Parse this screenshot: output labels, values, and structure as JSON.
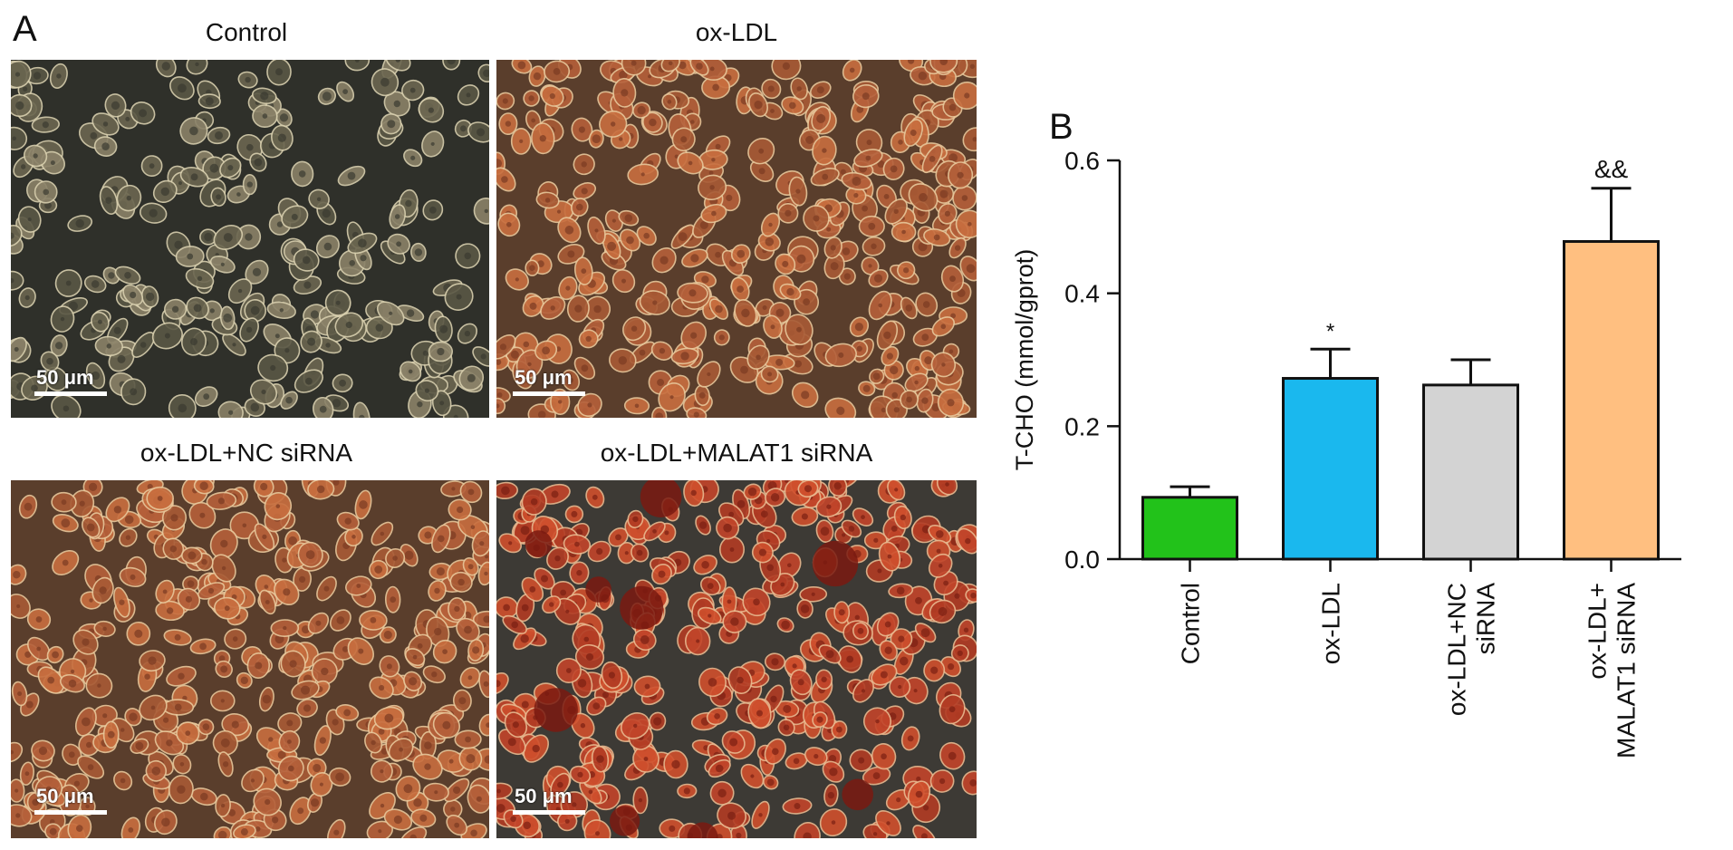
{
  "panel_a": {
    "letter": "A",
    "images": [
      {
        "title": "Control",
        "scale": "50 μm",
        "stain": "none"
      },
      {
        "title": "ox-LDL",
        "scale": "50 μm",
        "stain": "moderate"
      },
      {
        "title": "ox-LDL+NC siRNA",
        "scale": "50 μm",
        "stain": "moderate"
      },
      {
        "title": "ox-LDL+MALAT1 siRNA",
        "scale": "50 μm",
        "stain": "strong"
      }
    ]
  },
  "panel_b": {
    "letter": "B"
  },
  "chart_data": {
    "type": "bar",
    "categories": [
      "Control",
      "ox-LDL",
      "ox-LDL+NC siRNA",
      "ox-LDL+ MALAT1 siRNA"
    ],
    "category_lines": [
      [
        "Control"
      ],
      [
        "ox-LDL"
      ],
      [
        "ox-LDL+NC",
        "siRNA"
      ],
      [
        "ox-LDL+",
        "MALAT1 siRNA"
      ]
    ],
    "values": [
      0.093,
      0.272,
      0.262,
      0.478
    ],
    "errors": [
      0.016,
      0.044,
      0.038,
      0.08
    ],
    "annotations": [
      "",
      "*",
      "",
      "&&"
    ],
    "colors": [
      "#22c21a",
      "#1ab8ee",
      "#d3d3d3",
      "#ffbf80"
    ],
    "ylabel": "T-CHO (mmol/gprot)",
    "ylim": [
      0,
      0.6
    ],
    "yticks": [
      "0.0",
      "0.2",
      "0.4",
      "0.6"
    ],
    "grid": false
  }
}
